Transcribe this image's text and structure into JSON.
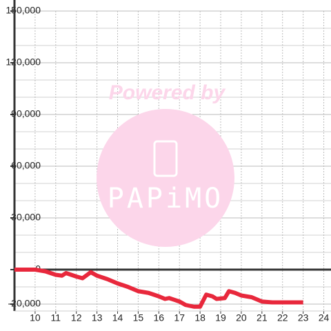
{
  "chart_data": {
    "type": "line",
    "watermark": {
      "line1": "Powered by",
      "line2": "PAPiMO"
    },
    "x": [
      9,
      10,
      10.5,
      11,
      11.3,
      11.5,
      12,
      12.3,
      12.7,
      13,
      13.5,
      14,
      14.5,
      15,
      15.5,
      16,
      16.3,
      16.5,
      17,
      17.3,
      17.7,
      18,
      18.3,
      18.6,
      18.8,
      19.2,
      19.4,
      19.7,
      20,
      20.5,
      21,
      21.5,
      23
    ],
    "series": [
      {
        "color": "#e8283c",
        "values": [
          0,
          0,
          -1000,
          -3000,
          -3500,
          -2000,
          -4000,
          -5000,
          -1500,
          -3500,
          -5500,
          -8000,
          -10000,
          -12500,
          -13500,
          -15500,
          -17000,
          -16500,
          -18500,
          -20500,
          -21500,
          -21500,
          -14500,
          -15500,
          -17000,
          -16500,
          -12500,
          -13500,
          -15000,
          -16000,
          -18500,
          -19000,
          -19000
        ]
      }
    ],
    "xlim": [
      9,
      24.35
    ],
    "ylim": [
      -24000,
      150000
    ],
    "xticks": [
      10,
      11,
      12,
      13,
      14,
      15,
      16,
      17,
      18,
      19,
      20,
      21,
      22,
      23,
      24
    ],
    "yticks": [
      {
        "value": -20000,
        "label": "-20,000"
      },
      0,
      {
        "value": 30000,
        "label": "30,000"
      },
      {
        "value": 60000,
        "label": "60,000"
      },
      {
        "value": 90000,
        "label": "90,000"
      },
      {
        "value": 120000,
        "label": "120,000"
      },
      {
        "value": 150000,
        "label": "150,000"
      }
    ],
    "y_minor_ticks": [
      -20000,
      -10000,
      10000,
      20000,
      40000,
      50000,
      70000,
      80000,
      100000,
      110000,
      130000,
      140000
    ],
    "grid": true
  }
}
